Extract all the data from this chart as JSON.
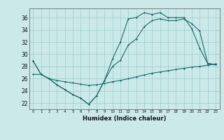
{
  "title": "",
  "xlabel": "Humidex (Indice chaleur)",
  "ylabel": "",
  "background_color": "#cce9e9",
  "line_color": "#1a6b6b",
  "xlim": [
    -0.5,
    23.5
  ],
  "ylim": [
    21.0,
    37.5
  ],
  "yticks": [
    22,
    24,
    26,
    28,
    30,
    32,
    34,
    36
  ],
  "xticks": [
    0,
    1,
    2,
    3,
    4,
    5,
    6,
    7,
    8,
    9,
    10,
    11,
    12,
    13,
    14,
    15,
    16,
    17,
    18,
    19,
    20,
    21,
    22,
    23
  ],
  "line1_x": [
    0,
    1,
    2,
    3,
    4,
    5,
    6,
    7,
    8,
    9,
    10,
    11,
    12,
    13,
    14,
    15,
    16,
    17,
    18,
    19,
    20,
    21,
    22,
    23
  ],
  "line1_y": [
    28.9,
    26.7,
    26.0,
    25.0,
    24.2,
    23.4,
    22.8,
    21.8,
    23.2,
    25.7,
    29.2,
    32.0,
    35.8,
    36.0,
    36.8,
    36.5,
    36.8,
    36.0,
    36.0,
    36.0,
    34.2,
    31.0,
    28.5,
    28.3
  ],
  "line2_x": [
    0,
    1,
    2,
    3,
    4,
    5,
    6,
    7,
    8,
    9,
    10,
    11,
    12,
    13,
    14,
    15,
    16,
    17,
    18,
    19,
    20,
    21,
    22,
    23
  ],
  "line2_y": [
    28.9,
    26.7,
    26.0,
    25.0,
    24.2,
    23.4,
    22.8,
    21.8,
    23.2,
    25.7,
    28.0,
    29.0,
    31.5,
    32.5,
    34.5,
    35.5,
    35.8,
    35.5,
    35.5,
    35.8,
    35.0,
    33.8,
    28.5,
    28.3
  ],
  "line3_x": [
    0,
    1,
    2,
    3,
    4,
    5,
    6,
    7,
    8,
    9,
    10,
    11,
    12,
    13,
    14,
    15,
    16,
    17,
    18,
    19,
    20,
    21,
    22,
    23
  ],
  "line3_y": [
    26.7,
    26.7,
    26.0,
    25.7,
    25.5,
    25.3,
    25.1,
    24.9,
    25.0,
    25.2,
    25.5,
    25.7,
    26.0,
    26.3,
    26.6,
    26.9,
    27.1,
    27.3,
    27.5,
    27.7,
    27.9,
    28.0,
    28.2,
    28.4
  ]
}
